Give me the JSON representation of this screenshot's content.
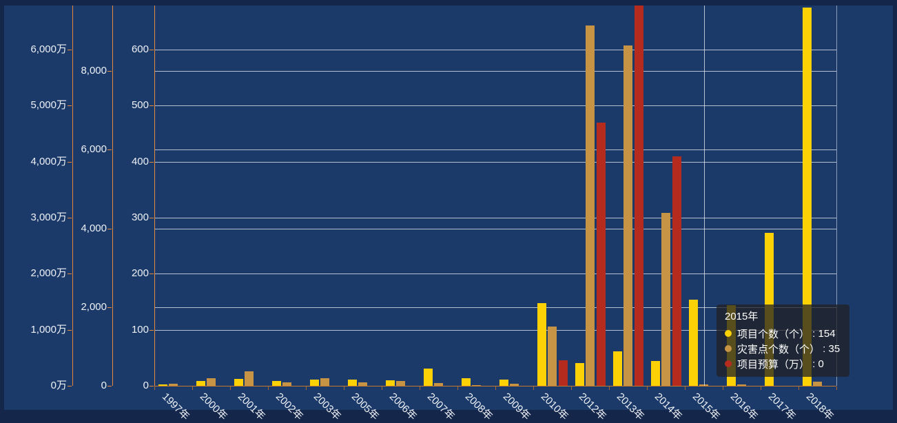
{
  "chart_data": {
    "type": "bar",
    "title": "",
    "categories": [
      "1997年",
      "2000年",
      "2001年",
      "2002年",
      "2003年",
      "2005年",
      "2006年",
      "2007年",
      "2008年",
      "2009年",
      "2010年",
      "2012年",
      "2013年",
      "2014年",
      "2015年",
      "2016年",
      "2017年",
      "2018年"
    ],
    "series": [
      {
        "name": "项目个数（个）",
        "color": "#fcd105",
        "axis": "count",
        "values": [
          3,
          8,
          12,
          9,
          11,
          11,
          10,
          31,
          14,
          11,
          147,
          41,
          61,
          44,
          154,
          144,
          273,
          675
        ]
      },
      {
        "name": "灾害点个数（个）",
        "color": "#c79445",
        "axis": "mid",
        "values": [
          50,
          200,
          360,
          90,
          185,
          90,
          120,
          70,
          20,
          45,
          1500,
          9150,
          8650,
          4400,
          35,
          35,
          0,
          105
        ]
      },
      {
        "name": "项目预算（万）",
        "color": "#b52b1e",
        "axis": "budget",
        "values": [
          0,
          0,
          0,
          0,
          0,
          0,
          0,
          0,
          0,
          0,
          450,
          4700,
          6850,
          4100,
          0,
          0,
          0,
          0
        ]
      }
    ],
    "y_axes": [
      {
        "id": "budget",
        "unit": "万",
        "gridlines": false,
        "range": [
          0,
          6000
        ],
        "tick_values": [
          0,
          1000,
          2000,
          3000,
          4000,
          5000,
          6000
        ],
        "tick_labels": [
          "0万",
          "1,000万",
          "2,000万",
          "3,000万",
          "4,000万",
          "5,000万",
          "6,000万"
        ]
      },
      {
        "id": "mid",
        "unit": "",
        "gridlines": true,
        "range": [
          0,
          8000
        ],
        "tick_values": [
          0,
          2000,
          4000,
          6000,
          8000
        ],
        "tick_labels": [
          "0",
          "2,000",
          "4,000",
          "6,000",
          "8,000"
        ]
      },
      {
        "id": "count",
        "unit": "",
        "gridlines": true,
        "range": [
          0,
          600
        ],
        "tick_values": [
          0,
          100,
          200,
          300,
          400,
          500,
          600
        ],
        "tick_labels": [
          "0",
          "100",
          "200",
          "300",
          "400",
          "500",
          "600"
        ]
      }
    ],
    "x_axis": {
      "label_rotation": 45
    },
    "legend_position": "none",
    "grid": true
  },
  "tooltip": {
    "title": "2015年",
    "rows": [
      {
        "label": "项目个数（个）",
        "separator": " : ",
        "value": "154",
        "color": "#fcd105"
      },
      {
        "label": "灾害点个数（个）",
        "separator": " : ",
        "value": "35",
        "color": "#c79445"
      },
      {
        "label": "项目预算（万）",
        "separator": " : ",
        "value": "0",
        "color": "#b52b1e"
      }
    ]
  },
  "colors": {
    "page_background": "#14264a",
    "plot_background": "#1b3a69",
    "axis_line": "#e78a3e",
    "gridline": "rgba(233,237,243,0.75)",
    "label_text": "#eef1f6",
    "bar_yellow": "#fcd105",
    "bar_tan": "#c79445",
    "bar_red": "#b52b1e",
    "crosshair": "rgba(223,229,236,0.8)",
    "tooltip_background": "rgba(33,34,38,0.75)"
  }
}
